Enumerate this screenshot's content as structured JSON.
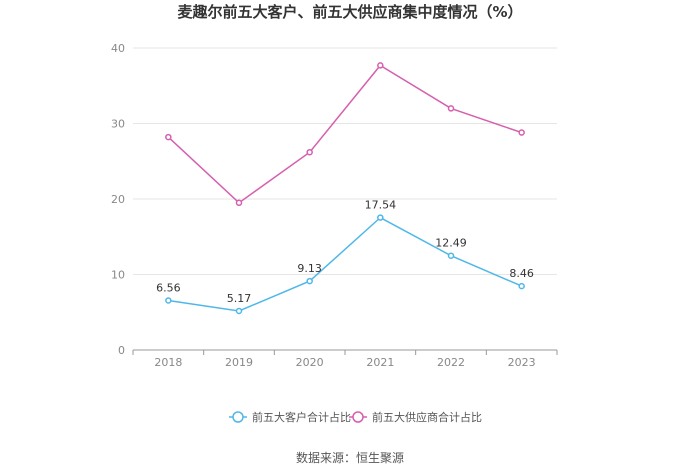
{
  "chart_data": {
    "type": "line",
    "title": "麦趣尔前五大客户、前五大供应商集中度情况（%）",
    "x": [
      "2018",
      "2019",
      "2020",
      "2021",
      "2022",
      "2023"
    ],
    "ylim": [
      0,
      40
    ],
    "yticks": [
      "0",
      "10",
      "20",
      "30",
      "40"
    ],
    "grid": true,
    "legend_position": "bottom",
    "series": [
      {
        "name": "前五大客户合计占比",
        "values": [
          6.56,
          5.17,
          9.13,
          17.54,
          12.49,
          8.46
        ],
        "labels": [
          "6.56",
          "5.17",
          "9.13",
          "17.54",
          "12.49",
          "8.46"
        ],
        "color": "#4fb8e8"
      },
      {
        "name": "前五大供应商合计占比",
        "values": [
          28.2,
          19.5,
          26.2,
          37.7,
          32.0,
          28.8
        ],
        "color": "#d65fae"
      }
    ],
    "source": "数据来源：恒生聚源"
  }
}
